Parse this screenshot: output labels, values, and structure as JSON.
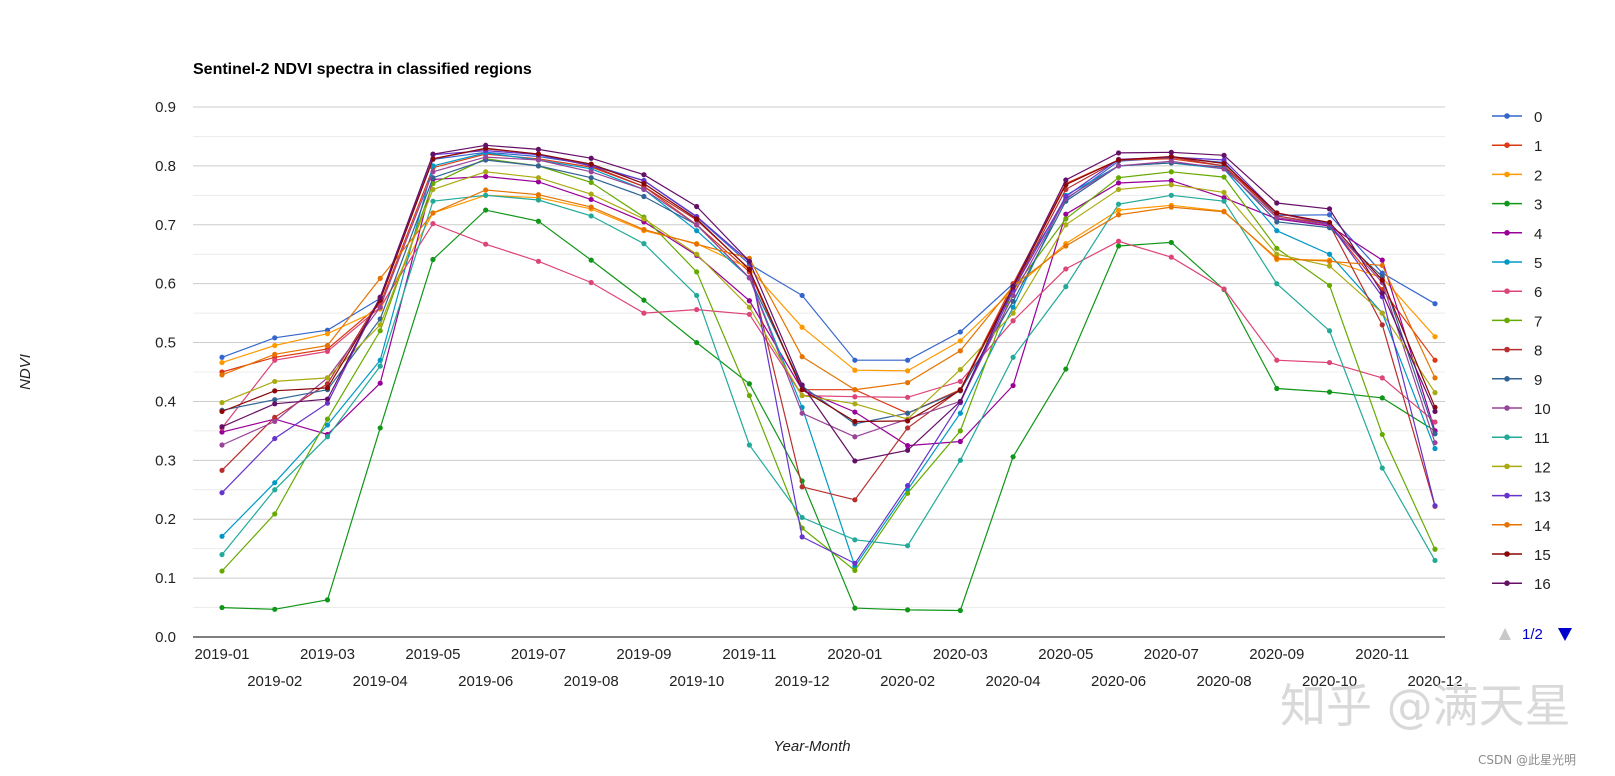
{
  "chart_data": {
    "type": "line",
    "title": "Sentinel-2 NDVI spectra in classified regions",
    "xlabel": "Year-Month",
    "ylabel": "NDVI",
    "ylim": [
      0,
      0.9
    ],
    "yticks": [
      "0.0",
      "0.1",
      "0.2",
      "0.3",
      "0.4",
      "0.5",
      "0.6",
      "0.7",
      "0.8",
      "0.9"
    ],
    "grid": true,
    "legend_position": "right",
    "categories": [
      "2019-01",
      "2019-02",
      "2019-03",
      "2019-04",
      "2019-05",
      "2019-06",
      "2019-07",
      "2019-08",
      "2019-09",
      "2019-10",
      "2019-11",
      "2019-12",
      "2020-01",
      "2020-02",
      "2020-03",
      "2020-04",
      "2020-05",
      "2020-06",
      "2020-07",
      "2020-08",
      "2020-09",
      "2020-10",
      "2020-11",
      "2020-12"
    ],
    "series": [
      {
        "name": "0",
        "color": "#3366cc",
        "values": [
          0.475,
          0.508,
          0.521,
          0.575,
          0.811,
          0.823,
          0.816,
          0.802,
          0.775,
          0.713,
          0.633,
          0.58,
          0.47,
          0.47,
          0.518,
          0.6,
          0.743,
          0.808,
          0.814,
          0.806,
          0.716,
          0.717,
          0.618,
          0.566
        ]
      },
      {
        "name": "1",
        "color": "#dc3912",
        "values": [
          0.45,
          0.475,
          0.489,
          0.565,
          0.797,
          0.82,
          0.812,
          0.798,
          0.765,
          0.7,
          0.62,
          0.42,
          0.42,
          0.38,
          0.42,
          0.6,
          0.77,
          0.81,
          0.812,
          0.8,
          0.72,
          0.7,
          0.59,
          0.47
        ]
      },
      {
        "name": "2",
        "color": "#ff9900",
        "values": [
          0.466,
          0.495,
          0.515,
          0.557,
          0.72,
          0.75,
          0.746,
          0.727,
          0.69,
          0.668,
          0.626,
          0.526,
          0.453,
          0.452,
          0.503,
          0.59,
          0.668,
          0.725,
          0.733,
          0.723,
          0.641,
          0.64,
          0.61,
          0.51
        ]
      },
      {
        "name": "3",
        "color": "#109618",
        "values": [
          0.05,
          0.047,
          0.063,
          0.355,
          0.641,
          0.725,
          0.706,
          0.64,
          0.572,
          0.5,
          0.43,
          0.265,
          0.049,
          0.046,
          0.045,
          0.306,
          0.455,
          0.664,
          0.67,
          0.59,
          0.422,
          0.416,
          0.406,
          0.35
        ]
      },
      {
        "name": "4",
        "color": "#990099",
        "values": [
          0.348,
          0.37,
          0.344,
          0.431,
          0.777,
          0.782,
          0.773,
          0.743,
          0.705,
          0.648,
          0.571,
          0.42,
          0.382,
          0.325,
          0.332,
          0.427,
          0.718,
          0.771,
          0.775,
          0.746,
          0.71,
          0.698,
          0.64,
          0.35
        ]
      },
      {
        "name": "5",
        "color": "#0099c6",
        "values": [
          0.171,
          0.262,
          0.36,
          0.47,
          0.8,
          0.822,
          0.81,
          0.795,
          0.76,
          0.69,
          0.61,
          0.39,
          0.12,
          0.25,
          0.38,
          0.56,
          0.75,
          0.8,
          0.805,
          0.795,
          0.69,
          0.65,
          0.55,
          0.32
        ]
      },
      {
        "name": "6",
        "color": "#dd4477",
        "values": [
          0.355,
          0.47,
          0.485,
          0.56,
          0.702,
          0.667,
          0.638,
          0.602,
          0.55,
          0.556,
          0.548,
          0.41,
          0.408,
          0.407,
          0.434,
          0.537,
          0.625,
          0.672,
          0.645,
          0.591,
          0.47,
          0.466,
          0.44,
          0.365
        ]
      },
      {
        "name": "7",
        "color": "#66aa00",
        "values": [
          0.112,
          0.209,
          0.37,
          0.52,
          0.77,
          0.812,
          0.8,
          0.772,
          0.713,
          0.62,
          0.41,
          0.185,
          0.113,
          0.244,
          0.35,
          0.59,
          0.71,
          0.78,
          0.79,
          0.781,
          0.66,
          0.597,
          0.344,
          0.149
        ]
      },
      {
        "name": "8",
        "color": "#b82e2e",
        "values": [
          0.283,
          0.373,
          0.43,
          0.575,
          0.812,
          0.829,
          0.82,
          0.8,
          0.765,
          0.708,
          0.625,
          0.255,
          0.233,
          0.355,
          0.42,
          0.59,
          0.76,
          0.81,
          0.815,
          0.8,
          0.715,
          0.7,
          0.53,
          0.222
        ]
      },
      {
        "name": "9",
        "color": "#316395",
        "values": [
          0.385,
          0.403,
          0.42,
          0.54,
          0.78,
          0.81,
          0.8,
          0.78,
          0.748,
          0.7,
          0.61,
          0.426,
          0.362,
          0.38,
          0.418,
          0.57,
          0.74,
          0.8,
          0.805,
          0.798,
          0.705,
          0.695,
          0.612,
          0.345
        ]
      },
      {
        "name": "10",
        "color": "#994499",
        "values": [
          0.326,
          0.366,
          0.44,
          0.56,
          0.79,
          0.815,
          0.81,
          0.79,
          0.76,
          0.7,
          0.61,
          0.38,
          0.34,
          0.37,
          0.4,
          0.58,
          0.745,
          0.8,
          0.808,
          0.795,
          0.712,
          0.7,
          0.602,
          0.33
        ]
      },
      {
        "name": "11",
        "color": "#22aa99",
        "values": [
          0.14,
          0.25,
          0.34,
          0.46,
          0.74,
          0.75,
          0.742,
          0.715,
          0.668,
          0.58,
          0.326,
          0.203,
          0.165,
          0.155,
          0.3,
          0.475,
          0.595,
          0.735,
          0.75,
          0.74,
          0.6,
          0.52,
          0.287,
          0.13
        ]
      },
      {
        "name": "12",
        "color": "#aaaa11",
        "values": [
          0.398,
          0.434,
          0.44,
          0.53,
          0.76,
          0.79,
          0.78,
          0.752,
          0.71,
          0.65,
          0.56,
          0.41,
          0.396,
          0.37,
          0.454,
          0.55,
          0.7,
          0.76,
          0.768,
          0.755,
          0.65,
          0.63,
          0.55,
          0.415
        ]
      },
      {
        "name": "13",
        "color": "#6633cc",
        "values": [
          0.245,
          0.337,
          0.397,
          0.577,
          0.819,
          0.826,
          0.819,
          0.8,
          0.775,
          0.714,
          0.637,
          0.17,
          0.125,
          0.257,
          0.398,
          0.589,
          0.748,
          0.811,
          0.815,
          0.81,
          0.72,
          0.702,
          0.578,
          0.223
        ]
      },
      {
        "name": "14",
        "color": "#e67300",
        "values": [
          0.445,
          0.48,
          0.495,
          0.609,
          0.72,
          0.759,
          0.751,
          0.73,
          0.692,
          0.667,
          0.643,
          0.476,
          0.42,
          0.432,
          0.486,
          0.596,
          0.664,
          0.717,
          0.73,
          0.722,
          0.643,
          0.638,
          0.631,
          0.44
        ]
      },
      {
        "name": "15",
        "color": "#8b0707",
        "values": [
          0.383,
          0.418,
          0.423,
          0.572,
          0.812,
          0.83,
          0.82,
          0.803,
          0.77,
          0.71,
          0.624,
          0.42,
          0.366,
          0.367,
          0.419,
          0.594,
          0.768,
          0.81,
          0.816,
          0.804,
          0.72,
          0.704,
          0.606,
          0.39
        ]
      },
      {
        "name": "16",
        "color": "#651067",
        "values": [
          0.357,
          0.396,
          0.404,
          0.577,
          0.82,
          0.835,
          0.828,
          0.813,
          0.785,
          0.731,
          0.638,
          0.428,
          0.299,
          0.317,
          0.4,
          0.596,
          0.776,
          0.822,
          0.823,
          0.818,
          0.737,
          0.727,
          0.584,
          0.383
        ]
      }
    ]
  },
  "legend": {
    "page": "1/2"
  },
  "watermark": {
    "text": "知乎 @满天星",
    "credit": "CSDN @此星光明"
  }
}
